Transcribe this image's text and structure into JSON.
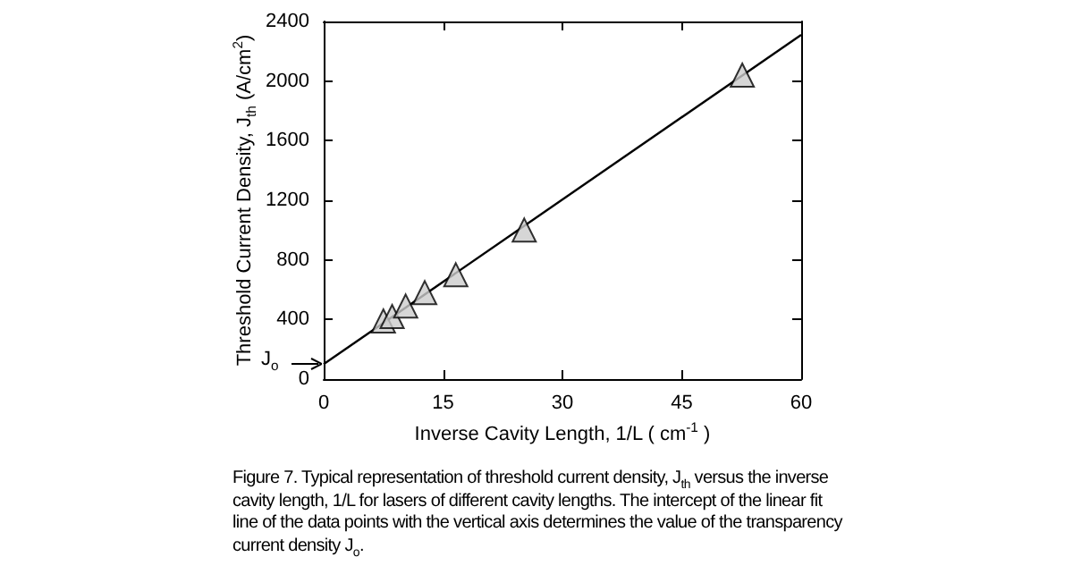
{
  "chart_data": {
    "type": "scatter",
    "xlabel": "Inverse Cavity Length, 1/L ( cm$^{-1}$ )",
    "ylabel": "Threshold Current Density, J$_{th}$ (A/cm$^{2}$)",
    "xlim": [
      0,
      60
    ],
    "xticks": [
      0,
      15,
      30,
      45,
      60
    ],
    "ylim": [
      0,
      2400
    ],
    "yticks": [
      0,
      400,
      800,
      1200,
      1600,
      2000,
      2400
    ],
    "grid": false,
    "marker": "triangle",
    "series": [
      {
        "color": "#cccccc",
        "x": [
          7.5,
          8.6,
          10.3,
          12.7,
          16.6,
          25.2,
          52.6
        ],
        "values": [
          390,
          420,
          490,
          580,
          700,
          1000,
          2040
        ]
      },
      {
        "type": "line",
        "color": "#000000",
        "marker": "none",
        "line_style": "solid",
        "x": [
          0,
          60
        ],
        "values": [
          100,
          2310
        ]
      }
    ],
    "annotations": [
      {
        "text": "J$_{o}$",
        "x": 0,
        "y": 100
      },
      "Figure 7. Typical representation of threshold current density, J$_{th}$ versus the inverse cavity length, 1/L for lasers of different cavity lengths. The intercept of the linear fit line of the data points with the vertical axis determines the value of the transparency current density J$_{o}$."
    ]
  }
}
